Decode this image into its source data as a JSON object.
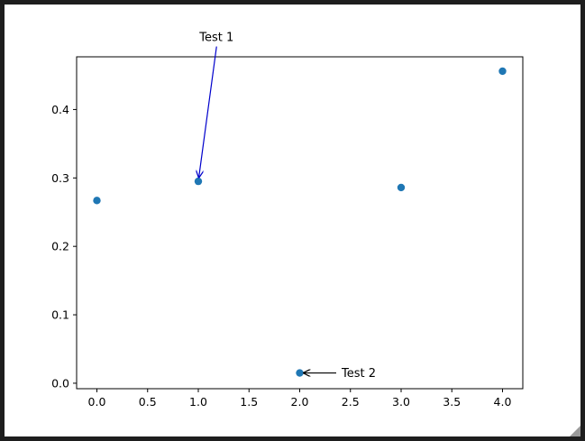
{
  "chart_data": {
    "type": "scatter",
    "x": [
      0,
      1,
      2,
      3,
      4
    ],
    "y": [
      0.267,
      0.295,
      0.015,
      0.286,
      0.456
    ],
    "xlim": [
      -0.2,
      4.2
    ],
    "ylim": [
      -0.008,
      0.477
    ],
    "xticks": [
      "0.0",
      "0.5",
      "1.0",
      "1.5",
      "2.0",
      "2.5",
      "3.0",
      "3.5",
      "4.0"
    ],
    "yticks": [
      "0.0",
      "0.1",
      "0.2",
      "0.3",
      "0.4"
    ],
    "grid": false,
    "marker_color": "#1f77b4",
    "annotations": [
      {
        "text": "Test 1",
        "point_index": 1,
        "text_x": 1.18,
        "text_y": 0.5,
        "arrow_color": "#0000cc"
      },
      {
        "text": "Test 2",
        "point_index": 2,
        "text_x": 2.36,
        "text_y": 0.015,
        "arrow_color": "#000000"
      }
    ]
  }
}
